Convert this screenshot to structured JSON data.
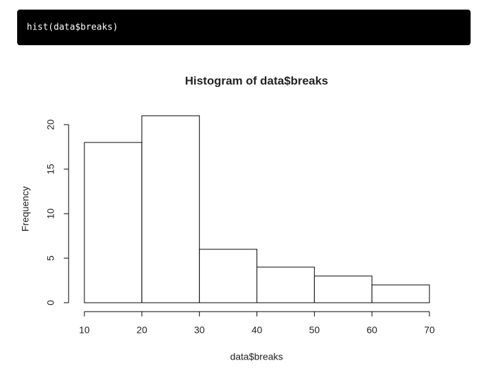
{
  "code": "hist(data$breaks)",
  "chart_data": {
    "type": "histogram",
    "title": "Histogram of data$breaks",
    "x_label": "data$breaks",
    "y_label": "Frequency",
    "bins": [
      10,
      20,
      30,
      40,
      50,
      60,
      70
    ],
    "values": [
      18,
      21,
      6,
      4,
      3,
      2
    ],
    "color": "#ffffff",
    "edge_color": "#000000",
    "xlim": [
      10,
      70
    ],
    "xticks": [
      10,
      20,
      30,
      40,
      50,
      60,
      70
    ],
    "ylim": [
      0,
      21
    ],
    "yticks": [
      0,
      5,
      10,
      15,
      20
    ]
  }
}
